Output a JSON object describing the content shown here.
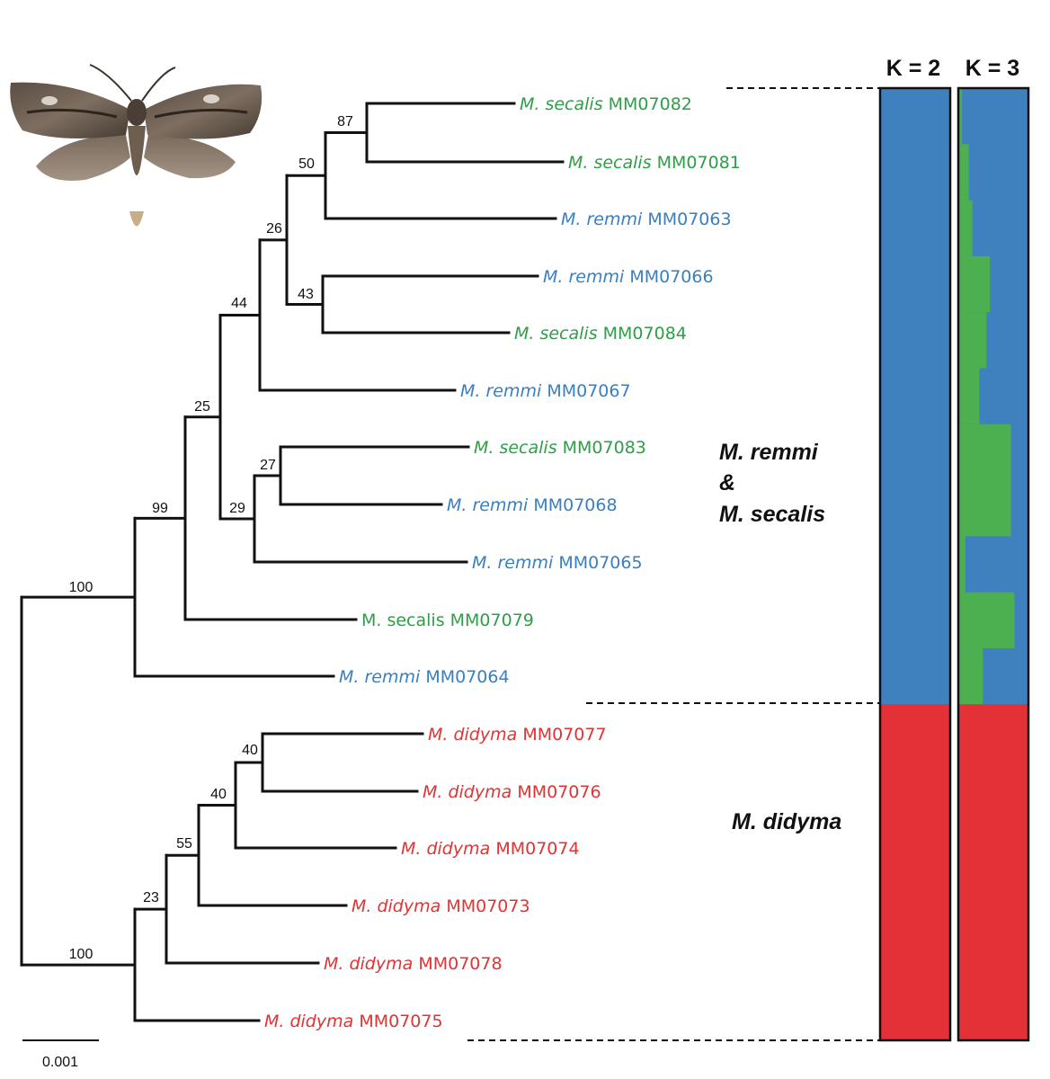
{
  "colors": {
    "secalis": "#2e9e47",
    "remmi": "#3a7fbf",
    "didyma": "#e03434",
    "k_blue": "#3f80be",
    "k_green": "#4caf50",
    "k_red": "#e33137",
    "branch": "#111111"
  },
  "moth_image": "moth-photo-icon",
  "tips": [
    {
      "species": "M. secalis",
      "id": "MM07082",
      "group": "secalis"
    },
    {
      "species": "M. secalis",
      "id": "MM07081",
      "group": "secalis"
    },
    {
      "species": "M. remmi",
      "id": "MM07063",
      "group": "remmi"
    },
    {
      "species": "M. remmi",
      "id": "MM07066",
      "group": "remmi"
    },
    {
      "species": "M. secalis",
      "id": "MM07084",
      "group": "secalis"
    },
    {
      "species": "M. remmi",
      "id": "MM07067",
      "group": "remmi"
    },
    {
      "species": "M. secalis",
      "id": "MM07083",
      "group": "secalis"
    },
    {
      "species": "M. remmi",
      "id": "MM07068",
      "group": "remmi"
    },
    {
      "species": "M. remmi",
      "id": "MM07065",
      "group": "remmi"
    },
    {
      "species": "M. secalis",
      "id": "MM07079",
      "group": "secalis",
      "upright": true
    },
    {
      "species": "M. remmi",
      "id": "MM07064",
      "group": "remmi"
    },
    {
      "species": "M. didyma",
      "id": "MM07077",
      "group": "didyma"
    },
    {
      "species": "M. didyma",
      "id": "MM07076",
      "group": "didyma"
    },
    {
      "species": "M. didyma",
      "id": "MM07074",
      "group": "didyma"
    },
    {
      "species": "M. didyma",
      "id": "MM07073",
      "group": "didyma"
    },
    {
      "species": "M. didyma",
      "id": "MM07078",
      "group": "didyma"
    },
    {
      "species": "M. didyma",
      "id": "MM07075",
      "group": "didyma"
    }
  ],
  "support_values": [
    "87",
    "50",
    "26",
    "43",
    "44",
    "25",
    "27",
    "29",
    "99",
    "100",
    "40",
    "40",
    "55",
    "23",
    "100"
  ],
  "groups": {
    "remmi_secalis": [
      "M. remmi",
      "&",
      "M. secalis"
    ],
    "didyma": "M. didyma"
  },
  "structure": {
    "k2_label": "K = 2",
    "k3_label": "K = 3",
    "k2_memberships": "all M. remmi & M. secalis individuals 100% blue; all M. didyma individuals 100% red",
    "k3_green_fraction": [
      0.05,
      0.15,
      0.2,
      0.45,
      0.4,
      0.3,
      0.75,
      0.75,
      0.1,
      0.8,
      0.35,
      0,
      0,
      0,
      0,
      0,
      0
    ]
  },
  "scale_bar": "0.001"
}
